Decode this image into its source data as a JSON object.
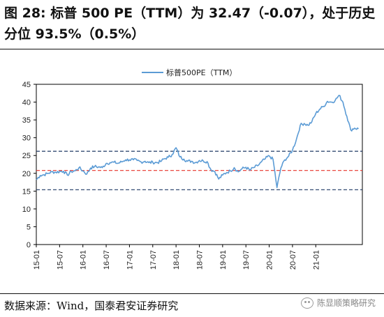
{
  "header": {
    "title": "图 28:  标普 500 PE（TTM）为 32.47（-0.07），处于历史分位 93.5%（0.5%）"
  },
  "footer": {
    "source": "数据来源：Wind，国泰君安证券研究",
    "watermark": "陈显顺策略研究"
  },
  "chart_data": {
    "type": "line",
    "title": "",
    "xlabel": "",
    "ylabel": "",
    "ylim": [
      0,
      45
    ],
    "yticks": [
      0,
      5,
      10,
      15,
      20,
      25,
      30,
      35,
      40,
      45
    ],
    "x_range": [
      "2015-01",
      "2021-12"
    ],
    "x_tick_labels": [
      "15-01",
      "15-07",
      "16-01",
      "16-07",
      "17-01",
      "17-07",
      "18-01",
      "18-07",
      "19-01",
      "19-07",
      "20-01",
      "20-07",
      "21-01"
    ],
    "grid": false,
    "legend_position": "top",
    "series": [
      {
        "name": "标普500PE（TTM）",
        "color": "#5b9bd5",
        "points": [
          [
            "2015-01",
            18.2
          ],
          [
            "2015-02",
            19.4
          ],
          [
            "2015-03",
            19.6
          ],
          [
            "2015-04",
            20.0
          ],
          [
            "2015-05",
            20.4
          ],
          [
            "2015-06",
            20.3
          ],
          [
            "2015-07",
            20.5
          ],
          [
            "2015-08",
            20.6
          ],
          [
            "2015-09",
            19.5
          ],
          [
            "2015-10",
            20.5
          ],
          [
            "2015-11",
            20.7
          ],
          [
            "2015-12",
            21.6
          ],
          [
            "2016-01",
            20.7
          ],
          [
            "2016-02",
            19.8
          ],
          [
            "2016-03",
            21.5
          ],
          [
            "2016-04",
            21.9
          ],
          [
            "2016-05",
            21.8
          ],
          [
            "2016-06",
            21.6
          ],
          [
            "2016-07",
            22.8
          ],
          [
            "2016-08",
            23.0
          ],
          [
            "2016-09",
            23.1
          ],
          [
            "2016-10",
            22.8
          ],
          [
            "2016-11",
            23.2
          ],
          [
            "2016-12",
            23.8
          ],
          [
            "2017-01",
            23.8
          ],
          [
            "2017-02",
            23.8
          ],
          [
            "2017-03",
            23.6
          ],
          [
            "2017-04",
            23.2
          ],
          [
            "2017-05",
            23.4
          ],
          [
            "2017-06",
            23.0
          ],
          [
            "2017-07",
            23.1
          ],
          [
            "2017-08",
            23.0
          ],
          [
            "2017-09",
            23.3
          ],
          [
            "2017-10",
            24.1
          ],
          [
            "2017-11",
            24.5
          ],
          [
            "2017-12",
            25.3
          ],
          [
            "2018-01",
            27.2
          ],
          [
            "2018-02",
            24.6
          ],
          [
            "2018-03",
            24.0
          ],
          [
            "2018-04",
            23.4
          ],
          [
            "2018-05",
            23.4
          ],
          [
            "2018-06",
            23.0
          ],
          [
            "2018-07",
            23.6
          ],
          [
            "2018-08",
            23.5
          ],
          [
            "2018-09",
            23.3
          ],
          [
            "2018-10",
            21.0
          ],
          [
            "2018-11",
            20.5
          ],
          [
            "2018-12",
            18.4
          ],
          [
            "2019-01",
            19.5
          ],
          [
            "2019-02",
            20.2
          ],
          [
            "2019-03",
            20.7
          ],
          [
            "2019-04",
            21.6
          ],
          [
            "2019-05",
            20.4
          ],
          [
            "2019-06",
            21.3
          ],
          [
            "2019-07",
            21.7
          ],
          [
            "2019-08",
            20.9
          ],
          [
            "2019-09",
            21.6
          ],
          [
            "2019-10",
            22.1
          ],
          [
            "2019-11",
            23.2
          ],
          [
            "2019-12",
            24.1
          ],
          [
            "2020-01",
            24.9
          ],
          [
            "2020-02",
            23.9
          ],
          [
            "2020-03",
            16.0
          ],
          [
            "2020-04",
            21.5
          ],
          [
            "2020-05",
            23.8
          ],
          [
            "2020-06",
            24.8
          ],
          [
            "2020-07",
            26.5
          ],
          [
            "2020-08",
            29.5
          ],
          [
            "2020-09",
            33.5
          ],
          [
            "2020-10",
            34.0
          ],
          [
            "2020-11",
            33.5
          ],
          [
            "2020-12",
            34.5
          ],
          [
            "2021-01",
            36.8
          ],
          [
            "2021-02",
            38.0
          ],
          [
            "2021-03",
            38.8
          ],
          [
            "2021-04",
            40.2
          ],
          [
            "2021-05",
            40.0
          ],
          [
            "2021-06",
            40.5
          ],
          [
            "2021-07",
            41.9
          ],
          [
            "2021-08",
            40.0
          ],
          [
            "2021-09",
            36.0
          ],
          [
            "2021-10",
            32.2
          ],
          [
            "2021-11",
            32.7
          ],
          [
            "2021-12",
            32.47
          ]
        ]
      }
    ],
    "reference_lines": [
      {
        "name": "mean",
        "value": 20.8,
        "color": "#e8322a",
        "style": "dashed"
      },
      {
        "name": "mean+1sd",
        "value": 26.2,
        "color": "#1f3864",
        "style": "dashed"
      },
      {
        "name": "mean-1sd",
        "value": 15.4,
        "color": "#1f3864",
        "style": "dashed"
      }
    ]
  }
}
